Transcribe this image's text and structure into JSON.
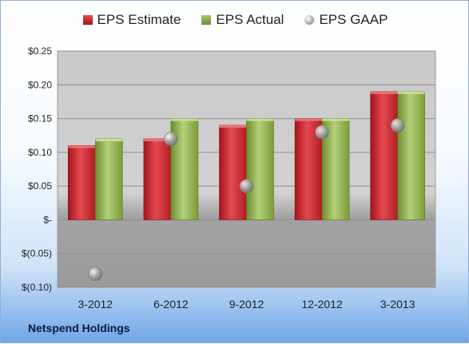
{
  "chart_data": {
    "type": "bar",
    "categories": [
      "3-2012",
      "6-2012",
      "9-2012",
      "12-2012",
      "3-2013"
    ],
    "series": [
      {
        "name": "EPS Estimate",
        "kind": "bar",
        "color": "#c8252b",
        "values": [
          0.11,
          0.12,
          0.14,
          0.15,
          0.19
        ]
      },
      {
        "name": "EPS Actual",
        "kind": "bar",
        "color": "#8db04a",
        "values": [
          0.12,
          0.15,
          0.15,
          0.15,
          0.19
        ]
      },
      {
        "name": "EPS GAAP",
        "kind": "scatter",
        "color": "#a9a9a9",
        "values": [
          -0.08,
          0.12,
          0.05,
          0.13,
          0.14
        ]
      }
    ],
    "ylim": [
      -0.1,
      0.25
    ],
    "yticks": [
      {
        "value": 0.25,
        "label": "$0.25"
      },
      {
        "value": 0.2,
        "label": "$0.20"
      },
      {
        "value": 0.15,
        "label": "$0.15"
      },
      {
        "value": 0.1,
        "label": "$0.10"
      },
      {
        "value": 0.05,
        "label": "$0.05"
      },
      {
        "value": 0.0,
        "label": "$-"
      },
      {
        "value": -0.05,
        "label": "$(0.05)"
      },
      {
        "value": -0.1,
        "label": "$(0.10)"
      }
    ],
    "grid": true,
    "legend_position": "top-center",
    "footer_title": "Netspend Holdings"
  }
}
